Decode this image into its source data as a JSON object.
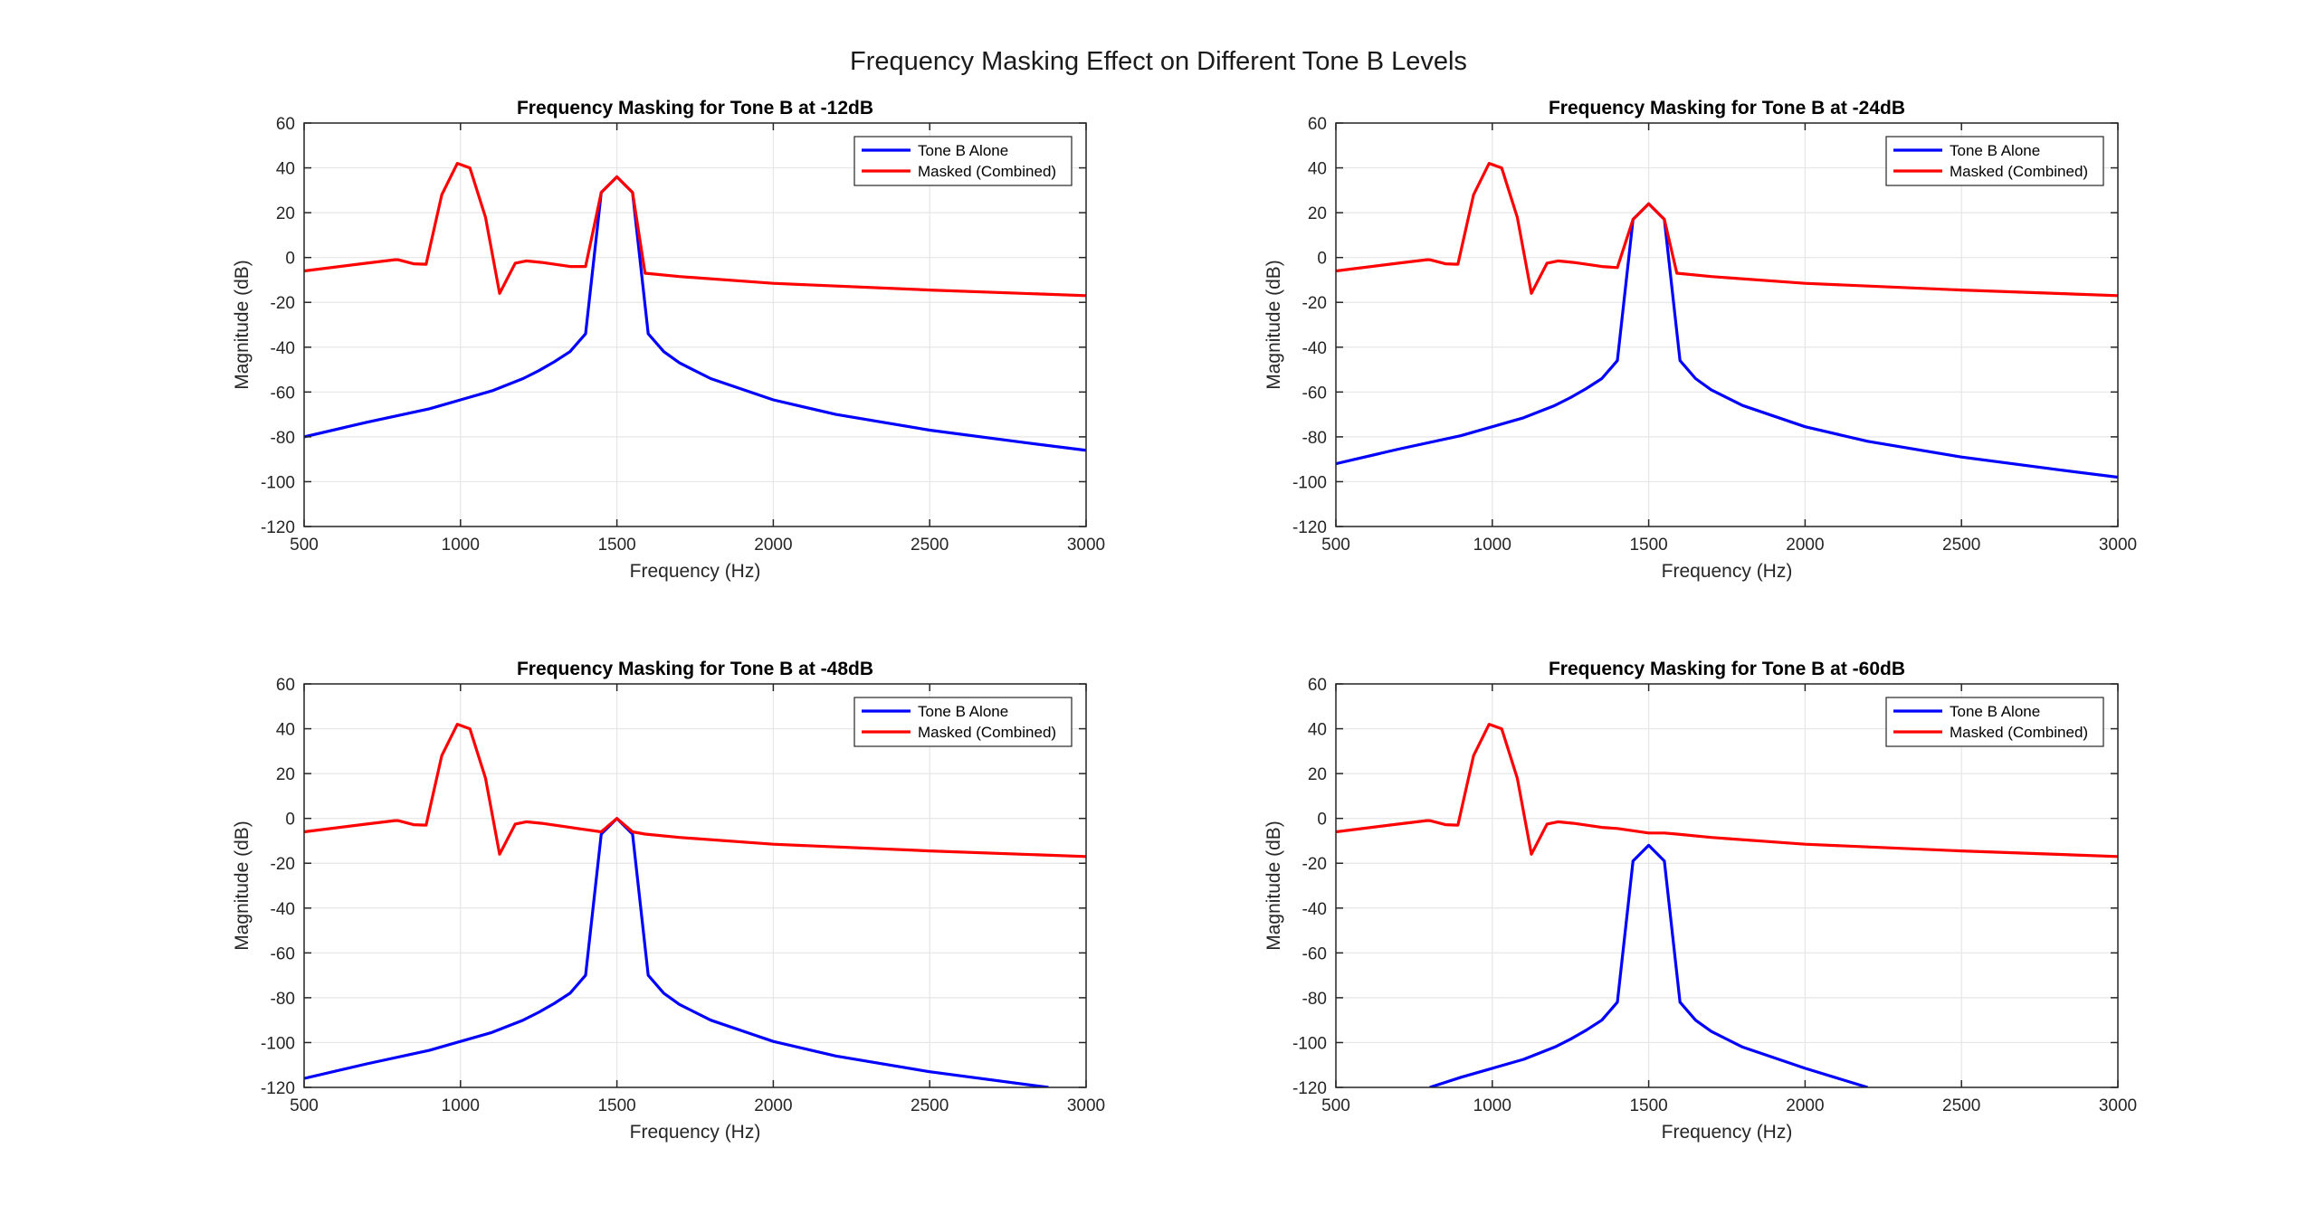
{
  "figure": {
    "suptitle": "Frequency Masking Effect on Different Tone B Levels"
  },
  "colors": {
    "tone_b": "#0000ff",
    "masked": "#ff0000",
    "axis": "#262626",
    "grid": "#e6e6e6"
  },
  "chart_data": [
    {
      "type": "line",
      "title": "Frequency Masking for Tone B at -12dB",
      "xlabel": "Frequency (Hz)",
      "ylabel": "Magnitude (dB)",
      "xlim": [
        500,
        3000
      ],
      "ylim": [
        -120,
        60
      ],
      "xticks": [
        500,
        1000,
        1500,
        2000,
        2500,
        3000
      ],
      "yticks": [
        -120,
        -100,
        -80,
        -60,
        -40,
        -20,
        0,
        20,
        40,
        60
      ],
      "grid": true,
      "legend": "top-right",
      "series": [
        {
          "name": "Tone B Alone",
          "color": "#0000ff",
          "x": [
            500,
            700,
            900,
            1000,
            1100,
            1200,
            1250,
            1300,
            1350,
            1400,
            1450,
            1500,
            1550,
            1600,
            1650,
            1700,
            1800,
            2000,
            2200,
            2500,
            2800,
            3000
          ],
          "y": [
            -80,
            -73.5,
            -67.5,
            -63.5,
            -59.5,
            -54,
            -50.5,
            -46.5,
            -42,
            -34,
            29,
            36,
            29,
            -34,
            -42,
            -47,
            -54,
            -63.5,
            -70,
            -77,
            -82.5,
            -86
          ]
        },
        {
          "name": "Masked (Combined)",
          "color": "#ff0000",
          "x": [
            500,
            700,
            790,
            800,
            850,
            890,
            940,
            990,
            1030,
            1080,
            1125,
            1175,
            1210,
            1260,
            1350,
            1400,
            1450,
            1500,
            1550,
            1590,
            1700,
            2000,
            2500,
            3000
          ],
          "y": [
            -6,
            -2.5,
            -1,
            -1,
            -2.8,
            -3,
            28,
            42,
            40,
            18,
            -16,
            -2.5,
            -1.5,
            -2.2,
            -4,
            -4,
            29,
            36,
            29,
            -7,
            -8.5,
            -11.5,
            -14.5,
            -17
          ]
        }
      ]
    },
    {
      "type": "line",
      "title": "Frequency Masking for Tone B at -24dB",
      "xlabel": "Frequency (Hz)",
      "ylabel": "Magnitude (dB)",
      "xlim": [
        500,
        3000
      ],
      "ylim": [
        -120,
        60
      ],
      "xticks": [
        500,
        1000,
        1500,
        2000,
        2500,
        3000
      ],
      "yticks": [
        -120,
        -100,
        -80,
        -60,
        -40,
        -20,
        0,
        20,
        40,
        60
      ],
      "grid": true,
      "legend": "top-right",
      "series": [
        {
          "name": "Tone B Alone",
          "color": "#0000ff",
          "x": [
            500,
            700,
            900,
            1000,
            1100,
            1200,
            1250,
            1300,
            1350,
            1400,
            1450,
            1500,
            1550,
            1600,
            1650,
            1700,
            1800,
            2000,
            2200,
            2500,
            2800,
            3000
          ],
          "y": [
            -92,
            -85.5,
            -79.5,
            -75.5,
            -71.5,
            -66,
            -62.5,
            -58.5,
            -54,
            -46,
            17,
            24,
            17,
            -46,
            -54,
            -59,
            -66,
            -75.5,
            -82,
            -89,
            -94.5,
            -98
          ]
        },
        {
          "name": "Masked (Combined)",
          "color": "#ff0000",
          "x": [
            500,
            700,
            790,
            800,
            850,
            890,
            940,
            990,
            1030,
            1080,
            1125,
            1175,
            1210,
            1260,
            1350,
            1400,
            1450,
            1500,
            1550,
            1590,
            1700,
            2000,
            2500,
            3000
          ],
          "y": [
            -6,
            -2.5,
            -1,
            -1,
            -2.8,
            -3,
            28,
            42,
            40,
            18,
            -16,
            -2.5,
            -1.5,
            -2.2,
            -4,
            -4.5,
            17,
            24,
            17,
            -7,
            -8.5,
            -11.5,
            -14.5,
            -17
          ]
        }
      ]
    },
    {
      "type": "line",
      "title": "Frequency Masking for Tone B at -48dB",
      "xlabel": "Frequency (Hz)",
      "ylabel": "Magnitude (dB)",
      "xlim": [
        500,
        3000
      ],
      "ylim": [
        -120,
        60
      ],
      "xticks": [
        500,
        1000,
        1500,
        2000,
        2500,
        3000
      ],
      "yticks": [
        -120,
        -100,
        -80,
        -60,
        -40,
        -20,
        0,
        20,
        40,
        60
      ],
      "grid": true,
      "legend": "top-right",
      "series": [
        {
          "name": "Tone B Alone",
          "color": "#0000ff",
          "x": [
            500,
            700,
            900,
            1000,
            1100,
            1200,
            1250,
            1300,
            1350,
            1400,
            1450,
            1500,
            1550,
            1600,
            1650,
            1700,
            1800,
            2000,
            2200,
            2500,
            2880
          ],
          "y": [
            -116,
            -109.5,
            -103.5,
            -99.5,
            -95.5,
            -90,
            -86.5,
            -82.5,
            -78,
            -70,
            -7,
            0,
            -7,
            -70,
            -78,
            -83,
            -90,
            -99.5,
            -106,
            -113,
            -120
          ]
        },
        {
          "name": "Masked (Combined)",
          "color": "#ff0000",
          "x": [
            500,
            700,
            790,
            800,
            850,
            890,
            940,
            990,
            1030,
            1080,
            1125,
            1175,
            1210,
            1260,
            1350,
            1400,
            1450,
            1500,
            1550,
            1590,
            1700,
            2000,
            2500,
            3000
          ],
          "y": [
            -6,
            -2.5,
            -1,
            -1,
            -2.8,
            -3,
            28,
            42,
            40,
            18,
            -16,
            -2.5,
            -1.5,
            -2.2,
            -4,
            -5,
            -6,
            0,
            -6,
            -7,
            -8.5,
            -11.5,
            -14.5,
            -17
          ]
        }
      ]
    },
    {
      "type": "line",
      "title": "Frequency Masking for Tone B at -60dB",
      "xlabel": "Frequency (Hz)",
      "ylabel": "Magnitude (dB)",
      "xlim": [
        500,
        3000
      ],
      "ylim": [
        -120,
        60
      ],
      "xticks": [
        500,
        1000,
        1500,
        2000,
        2500,
        3000
      ],
      "yticks": [
        -120,
        -100,
        -80,
        -60,
        -40,
        -20,
        0,
        20,
        40,
        60
      ],
      "grid": true,
      "legend": "top-right",
      "series": [
        {
          "name": "Tone B Alone",
          "color": "#0000ff",
          "x": [
            800,
            900,
            1000,
            1100,
            1200,
            1250,
            1300,
            1350,
            1400,
            1450,
            1500,
            1550,
            1600,
            1650,
            1700,
            1800,
            2000,
            2200
          ],
          "y": [
            -120,
            -115.5,
            -111.5,
            -107.5,
            -102,
            -98.5,
            -94.5,
            -90,
            -82,
            -19,
            -12,
            -19,
            -82,
            -90,
            -95,
            -102,
            -111.5,
            -120
          ]
        },
        {
          "name": "Masked (Combined)",
          "color": "#ff0000",
          "x": [
            500,
            700,
            790,
            800,
            850,
            890,
            940,
            990,
            1030,
            1080,
            1125,
            1175,
            1210,
            1260,
            1350,
            1400,
            1450,
            1500,
            1550,
            1590,
            1700,
            2000,
            2500,
            3000
          ],
          "y": [
            -6,
            -2.5,
            -1,
            -1,
            -2.8,
            -3,
            28,
            42,
            40,
            18,
            -16,
            -2.5,
            -1.5,
            -2.2,
            -4,
            -4.5,
            -5.5,
            -6.5,
            -6.5,
            -7,
            -8.5,
            -11.5,
            -14.5,
            -17
          ]
        }
      ]
    }
  ]
}
